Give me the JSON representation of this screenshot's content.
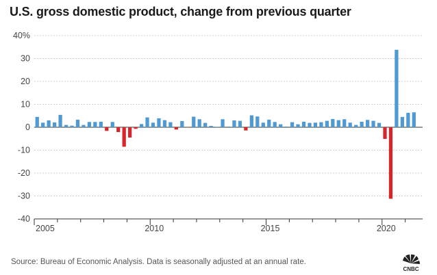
{
  "title": "U.S. gross domestic product, change from previous quarter",
  "source": "Source: Bureau of Economic Analysis. Data is seasonally adjusted at an annual rate.",
  "logo_text": "CNBC",
  "colors": {
    "positive": "#4f9ad3",
    "negative": "#d7262b",
    "grid": "#cccccc",
    "zero": "#333333"
  },
  "chart_data": {
    "type": "bar",
    "title": "U.S. gross domestic product, change from previous quarter",
    "xlabel": "",
    "ylabel": "",
    "ylim": [
      -40,
      40
    ],
    "yticks": [
      "40%",
      "30",
      "20",
      "10",
      "0",
      "-10",
      "-20",
      "-30",
      "-40"
    ],
    "xticks": [
      "2005",
      "2010",
      "2015",
      "2020"
    ],
    "grid": true,
    "categories": [
      "2005 Q1",
      "2005 Q2",
      "2005 Q3",
      "2005 Q4",
      "2006 Q1",
      "2006 Q2",
      "2006 Q3",
      "2006 Q4",
      "2007 Q1",
      "2007 Q2",
      "2007 Q3",
      "2007 Q4",
      "2008 Q1",
      "2008 Q2",
      "2008 Q3",
      "2008 Q4",
      "2009 Q1",
      "2009 Q2",
      "2009 Q3",
      "2009 Q4",
      "2010 Q1",
      "2010 Q2",
      "2010 Q3",
      "2010 Q4",
      "2011 Q1",
      "2011 Q2",
      "2011 Q3",
      "2011 Q4",
      "2012 Q1",
      "2012 Q2",
      "2012 Q3",
      "2012 Q4",
      "2013 Q1",
      "2013 Q2",
      "2013 Q3",
      "2013 Q4",
      "2014 Q1",
      "2014 Q2",
      "2014 Q3",
      "2014 Q4",
      "2015 Q1",
      "2015 Q2",
      "2015 Q3",
      "2015 Q4",
      "2016 Q1",
      "2016 Q2",
      "2016 Q3",
      "2016 Q4",
      "2017 Q1",
      "2017 Q2",
      "2017 Q3",
      "2017 Q4",
      "2018 Q1",
      "2018 Q2",
      "2018 Q3",
      "2018 Q4",
      "2019 Q1",
      "2019 Q2",
      "2019 Q3",
      "2019 Q4",
      "2020 Q1",
      "2020 Q2",
      "2020 Q3",
      "2020 Q4",
      "2021 Q1",
      "2021 Q2",
      "2021 Q3"
    ],
    "values": [
      4.5,
      2.0,
      3.0,
      2.1,
      5.4,
      1.0,
      0.7,
      3.3,
      1.0,
      2.3,
      2.3,
      2.4,
      -1.6,
      2.3,
      -2.1,
      -8.5,
      -4.5,
      -0.7,
      1.4,
      4.3,
      2.0,
      3.9,
      3.1,
      2.2,
      -1.0,
      2.7,
      -0.1,
      4.6,
      3.5,
      1.9,
      0.6,
      0.2,
      3.5,
      0.3,
      3.0,
      2.8,
      -1.4,
      5.2,
      4.7,
      2.0,
      3.3,
      2.3,
      1.3,
      0.3,
      2.2,
      1.3,
      2.4,
      1.9,
      2.0,
      2.2,
      2.8,
      3.6,
      3.1,
      3.5,
      2.0,
      1.0,
      2.4,
      3.2,
      2.8,
      1.9,
      -5.1,
      -31.2,
      33.8,
      4.5,
      6.3,
      6.5,
      0
    ]
  }
}
